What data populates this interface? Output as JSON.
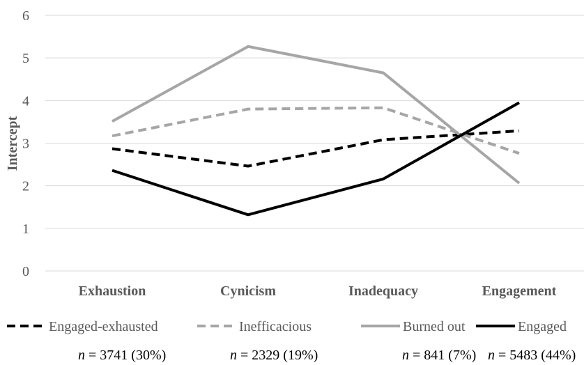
{
  "chart_data": {
    "type": "line",
    "categories": [
      "Exhaustion",
      "Cynicism",
      "Inadequacy",
      "Engagement"
    ],
    "ylabel": "Intercept",
    "xlabel": "",
    "ylim": [
      0,
      6
    ],
    "yticks": [
      0,
      1,
      2,
      3,
      4,
      5,
      6
    ],
    "grid": true,
    "legend_position": "bottom",
    "series": [
      {
        "name": "Engaged-exhausted",
        "values": [
          2.87,
          2.46,
          3.08,
          3.29
        ],
        "color": "#000000",
        "dash": true,
        "n_label": "= 3741 (30%)"
      },
      {
        "name": "Inefficacious",
        "values": [
          3.17,
          3.8,
          3.83,
          2.76
        ],
        "color": "#a6a6a6",
        "dash": true,
        "n_label": "= 2329 (19%)"
      },
      {
        "name": "Burned out",
        "values": [
          3.51,
          5.27,
          4.65,
          2.06
        ],
        "color": "#a6a6a6",
        "dash": false,
        "n_label": "= 841 (7%)"
      },
      {
        "name": "Engaged",
        "values": [
          2.36,
          1.32,
          2.16,
          3.95
        ],
        "color": "#000000",
        "dash": false,
        "n_label": "= 5483 (44%)"
      }
    ],
    "n_prefix": "n"
  }
}
